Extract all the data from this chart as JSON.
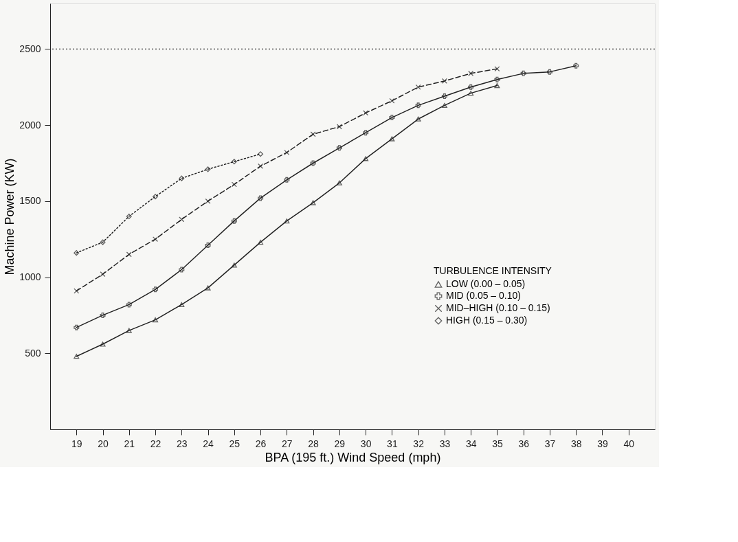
{
  "chart_data": {
    "type": "line",
    "xlabel": "BPA (195 ft.) Wind Speed (mph)",
    "ylabel": "Machine Power (KW)",
    "legend_title": "TURBULENCE INTENSITY",
    "xlim": [
      18,
      41
    ],
    "xticks": [
      19,
      20,
      21,
      22,
      23,
      24,
      25,
      26,
      27,
      28,
      29,
      30,
      31,
      32,
      33,
      34,
      35,
      36,
      37,
      38,
      39,
      40
    ],
    "ylim": [
      0,
      2800
    ],
    "yticks": [
      500,
      1000,
      1500,
      2000,
      2500
    ],
    "grid": false,
    "legend": "bottom right",
    "ref_lines": [
      {
        "axis": "y",
        "value": 2500,
        "line_style": "dotted",
        "color": "#333333"
      }
    ],
    "series": [
      {
        "name": "LOW (0.00 – 0.05)",
        "color": "#222222",
        "marker": "triangle",
        "line_style": "solid",
        "x": [
          19,
          20,
          21,
          22,
          23,
          24,
          25,
          26,
          27,
          28,
          29,
          30,
          31,
          32,
          33,
          34,
          35
        ],
        "values": [
          480,
          560,
          650,
          720,
          820,
          930,
          1080,
          1230,
          1370,
          1490,
          1620,
          1780,
          1910,
          2040,
          2130,
          2210,
          2260
        ]
      },
      {
        "name": "MID (0.05 – 0.10)",
        "color": "#222222",
        "marker": "cross",
        "line_style": "solid",
        "x": [
          19,
          20,
          21,
          22,
          23,
          24,
          25,
          26,
          27,
          28,
          29,
          30,
          31,
          32,
          33,
          34,
          35,
          36,
          37,
          38
        ],
        "values": [
          670,
          750,
          820,
          920,
          1050,
          1210,
          1370,
          1520,
          1640,
          1750,
          1850,
          1950,
          2050,
          2130,
          2190,
          2250,
          2300,
          2340,
          2350,
          2390
        ]
      },
      {
        "name": "MID–HIGH (0.10 – 0.15)",
        "color": "#222222",
        "marker": "x",
        "line_style": "dashed",
        "x": [
          19,
          20,
          21,
          22,
          23,
          24,
          25,
          26,
          27,
          28,
          29,
          30,
          31,
          32,
          33,
          34,
          35
        ],
        "values": [
          910,
          1020,
          1150,
          1250,
          1380,
          1500,
          1610,
          1730,
          1820,
          1940,
          1990,
          2080,
          2160,
          2250,
          2290,
          2340,
          2370
        ]
      },
      {
        "name": "HIGH (0.15 – 0.30)",
        "color": "#222222",
        "marker": "diamond",
        "line_style": "dotted",
        "x": [
          19,
          20,
          21,
          22,
          23,
          24,
          25,
          26
        ],
        "values": [
          1160,
          1230,
          1400,
          1530,
          1650,
          1710,
          1760,
          1810
        ]
      }
    ]
  }
}
